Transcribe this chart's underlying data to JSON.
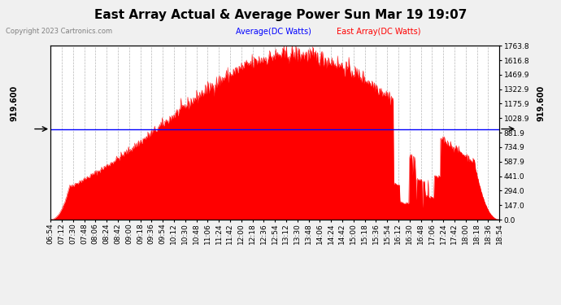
{
  "title": "East Array Actual & Average Power Sun Mar 19 19:07",
  "copyright": "Copyright 2023 Cartronics.com",
  "legend_avg": "Average(DC Watts)",
  "legend_east": "East Array(DC Watts)",
  "legend_avg_color": "blue",
  "legend_east_color": "red",
  "avg_line_value": 919.6,
  "avg_label": "919.600",
  "y_right_ticks": [
    0.0,
    147.0,
    294.0,
    441.0,
    587.9,
    734.9,
    881.9,
    1028.9,
    1175.9,
    1322.9,
    1469.9,
    1616.8,
    1763.8
  ],
  "y_right_labels": [
    "0.0",
    "147.0",
    "294.0",
    "441.0",
    "587.9",
    "734.9",
    "881.9",
    "1028.9",
    "1175.9",
    "1322.9",
    "1469.9",
    "1616.8",
    "1763.8"
  ],
  "ymax": 1763.8,
  "ymin": 0.0,
  "background_color": "#f0f0f0",
  "plot_bg_color": "#ffffff",
  "grid_color": "#999999",
  "fill_color": "red",
  "fill_alpha": 1.0,
  "title_fontsize": 11,
  "tick_fontsize": 6.5,
  "x_times": [
    "06:54",
    "07:12",
    "07:30",
    "07:48",
    "08:06",
    "08:24",
    "08:42",
    "09:00",
    "09:18",
    "09:36",
    "09:54",
    "10:12",
    "10:30",
    "10:48",
    "11:06",
    "11:24",
    "11:42",
    "12:00",
    "12:18",
    "12:36",
    "12:54",
    "13:12",
    "13:30",
    "13:48",
    "14:06",
    "14:24",
    "14:42",
    "15:00",
    "15:18",
    "15:36",
    "15:54",
    "16:12",
    "16:30",
    "16:48",
    "17:06",
    "17:24",
    "17:42",
    "18:00",
    "18:18",
    "18:36",
    "18:54"
  ]
}
